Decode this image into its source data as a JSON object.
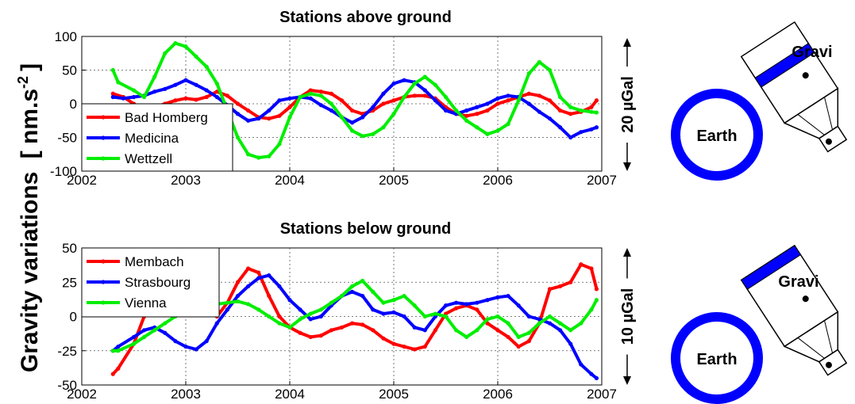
{
  "ylabel_main": "Gravity variations",
  "ylabel_units": "[ nm.s",
  "ylabel_exp": "-2",
  "ylabel_close": "]",
  "chart_data": [
    {
      "type": "line",
      "title": "Stations above ground",
      "xlim": [
        2002,
        2007
      ],
      "ylim": [
        -100,
        100
      ],
      "xticks": [
        "2002",
        "2003",
        "2004",
        "2005",
        "2006",
        "2007"
      ],
      "yticks": [
        "100",
        "50",
        "0",
        "-50",
        "-100"
      ],
      "scale_label": "20 µGal",
      "grid": true,
      "legend_position": "bottom-left",
      "series": [
        {
          "name": "Bad Homberg",
          "color": "#ff0000",
          "x": [
            2002.3,
            2002.4,
            2002.5,
            2002.6,
            2002.7,
            2002.8,
            2002.9,
            2003.0,
            2003.1,
            2003.2,
            2003.3,
            2003.4,
            2003.5,
            2003.6,
            2003.7,
            2003.8,
            2003.9,
            2004.0,
            2004.1,
            2004.2,
            2004.3,
            2004.4,
            2004.5,
            2004.6,
            2004.7,
            2004.8,
            2004.9,
            2005.0,
            2005.1,
            2005.2,
            2005.3,
            2005.4,
            2005.5,
            2005.6,
            2005.7,
            2005.8,
            2005.9,
            2006.0,
            2006.1,
            2006.2,
            2006.3,
            2006.4,
            2006.5,
            2006.6,
            2006.7,
            2006.8,
            2006.9,
            2006.95
          ],
          "y": [
            15,
            10,
            0,
            -10,
            -5,
            0,
            5,
            8,
            6,
            10,
            18,
            12,
            0,
            -10,
            -20,
            -22,
            -18,
            -5,
            10,
            20,
            18,
            15,
            5,
            -10,
            -15,
            -10,
            0,
            5,
            10,
            12,
            12,
            8,
            -5,
            -15,
            -18,
            -15,
            -10,
            0,
            5,
            10,
            15,
            12,
            5,
            -10,
            -15,
            -12,
            -5,
            5
          ]
        },
        {
          "name": "Medicina",
          "color": "#0000ff",
          "x": [
            2002.3,
            2002.4,
            2002.5,
            2002.6,
            2002.7,
            2002.8,
            2002.9,
            2003.0,
            2003.1,
            2003.2,
            2003.3,
            2003.4,
            2003.5,
            2003.6,
            2003.7,
            2003.8,
            2003.9,
            2004.0,
            2004.1,
            2004.2,
            2004.3,
            2004.4,
            2004.5,
            2004.6,
            2004.7,
            2004.8,
            2004.9,
            2005.0,
            2005.1,
            2005.2,
            2005.3,
            2005.4,
            2005.5,
            2005.6,
            2005.7,
            2005.8,
            2005.9,
            2006.0,
            2006.1,
            2006.2,
            2006.3,
            2006.4,
            2006.5,
            2006.6,
            2006.7,
            2006.8,
            2006.9,
            2006.95
          ],
          "y": [
            10,
            8,
            10,
            12,
            18,
            22,
            28,
            35,
            28,
            20,
            10,
            -2,
            -15,
            -25,
            -22,
            -10,
            5,
            8,
            10,
            8,
            -2,
            -10,
            -20,
            -28,
            -20,
            -5,
            15,
            30,
            35,
            32,
            20,
            5,
            -10,
            -15,
            -10,
            -5,
            0,
            8,
            12,
            10,
            0,
            -12,
            -22,
            -35,
            -50,
            -42,
            -38,
            -35
          ]
        },
        {
          "name": "Wettzell",
          "color": "#00ee00",
          "x": [
            2002.3,
            2002.35,
            2002.5,
            2002.6,
            2002.7,
            2002.8,
            2002.9,
            2003.0,
            2003.1,
            2003.2,
            2003.3,
            2003.4,
            2003.5,
            2003.6,
            2003.7,
            2003.8,
            2003.9,
            2004.0,
            2004.1,
            2004.2,
            2004.3,
            2004.4,
            2004.5,
            2004.6,
            2004.7,
            2004.8,
            2004.9,
            2005.0,
            2005.1,
            2005.2,
            2005.3,
            2005.4,
            2005.5,
            2005.6,
            2005.7,
            2005.8,
            2005.9,
            2006.0,
            2006.1,
            2006.2,
            2006.3,
            2006.4,
            2006.5,
            2006.6,
            2006.7,
            2006.8,
            2006.9,
            2006.95
          ],
          "y": [
            50,
            32,
            20,
            10,
            40,
            75,
            90,
            85,
            70,
            55,
            30,
            -10,
            -50,
            -75,
            -80,
            -78,
            -60,
            -20,
            10,
            15,
            12,
            0,
            -20,
            -40,
            -48,
            -45,
            -35,
            -15,
            10,
            30,
            40,
            28,
            10,
            -10,
            -25,
            -35,
            -45,
            -40,
            -30,
            5,
            45,
            62,
            50,
            10,
            -5,
            -10,
            -12,
            -13
          ]
        }
      ]
    },
    {
      "type": "line",
      "title": "Stations below ground",
      "xlim": [
        2002,
        2007
      ],
      "ylim": [
        -50,
        50
      ],
      "xticks": [
        "2002",
        "2003",
        "2004",
        "2005",
        "2006",
        "2007"
      ],
      "yticks": [
        "50",
        "25",
        "0",
        "-25",
        "-50"
      ],
      "scale_label": "10 µGal",
      "grid": true,
      "legend_position": "top-left",
      "series": [
        {
          "name": "Membach",
          "color": "#ff0000",
          "x": [
            2002.3,
            2002.35,
            2002.5,
            2002.6,
            2002.7,
            2002.8,
            2002.9,
            2003.0,
            2003.1,
            2003.2,
            2003.3,
            2003.4,
            2003.5,
            2003.6,
            2003.7,
            2003.8,
            2003.9,
            2004.0,
            2004.1,
            2004.2,
            2004.3,
            2004.4,
            2004.5,
            2004.6,
            2004.7,
            2004.8,
            2004.9,
            2005.0,
            2005.1,
            2005.2,
            2005.3,
            2005.4,
            2005.5,
            2005.6,
            2005.7,
            2005.8,
            2005.9,
            2006.0,
            2006.1,
            2006.2,
            2006.3,
            2006.4,
            2006.5,
            2006.6,
            2006.7,
            2006.8,
            2006.9,
            2006.95
          ],
          "y": [
            -42,
            -38,
            -20,
            0,
            8,
            10,
            12,
            15,
            12,
            5,
            0,
            10,
            25,
            35,
            32,
            15,
            0,
            -8,
            -12,
            -15,
            -14,
            -10,
            -8,
            -5,
            -6,
            -10,
            -16,
            -20,
            -22,
            -24,
            -22,
            -10,
            2,
            6,
            8,
            5,
            -5,
            -10,
            -15,
            -22,
            -18,
            -5,
            20,
            22,
            25,
            38,
            35,
            20
          ]
        },
        {
          "name": "Strasbourg",
          "color": "#0000ff",
          "x": [
            2002.3,
            2002.35,
            2002.5,
            2002.6,
            2002.7,
            2002.8,
            2002.9,
            2003.0,
            2003.1,
            2003.2,
            2003.3,
            2003.4,
            2003.5,
            2003.6,
            2003.7,
            2003.8,
            2003.9,
            2004.0,
            2004.1,
            2004.2,
            2004.3,
            2004.4,
            2004.5,
            2004.6,
            2004.7,
            2004.8,
            2004.9,
            2005.0,
            2005.1,
            2005.2,
            2005.3,
            2005.4,
            2005.5,
            2005.6,
            2005.7,
            2005.8,
            2005.9,
            2006.0,
            2006.1,
            2006.2,
            2006.3,
            2006.4,
            2006.5,
            2006.6,
            2006.7,
            2006.8,
            2006.9,
            2006.95
          ],
          "y": [
            -25,
            -22,
            -15,
            -10,
            -8,
            -12,
            -18,
            -22,
            -24,
            -18,
            -5,
            5,
            15,
            22,
            28,
            30,
            22,
            12,
            5,
            -2,
            0,
            8,
            15,
            18,
            15,
            5,
            2,
            3,
            0,
            -8,
            -10,
            0,
            8,
            10,
            9,
            10,
            12,
            14,
            15,
            8,
            0,
            -2,
            -5,
            -10,
            -20,
            -35,
            -42,
            -45
          ]
        },
        {
          "name": "Vienna",
          "color": "#00ee00",
          "x": [
            2002.3,
            2002.35,
            2002.5,
            2002.6,
            2002.7,
            2002.8,
            2002.9,
            2003.0,
            2003.1,
            2003.2,
            2003.3,
            2003.4,
            2003.5,
            2003.6,
            2003.7,
            2003.8,
            2003.9,
            2004.0,
            2004.1,
            2004.2,
            2004.3,
            2004.4,
            2004.5,
            2004.6,
            2004.7,
            2004.8,
            2004.9,
            2005.0,
            2005.1,
            2005.2,
            2005.3,
            2005.4,
            2005.5,
            2005.6,
            2005.7,
            2005.8,
            2005.9,
            2006.0,
            2006.1,
            2006.2,
            2006.3,
            2006.4,
            2006.5,
            2006.6,
            2006.7,
            2006.8,
            2006.9,
            2006.95
          ],
          "y": [
            -25,
            -25,
            -20,
            -15,
            -10,
            -5,
            0,
            5,
            8,
            8,
            9,
            10,
            11,
            9,
            5,
            0,
            -5,
            -8,
            -2,
            2,
            5,
            10,
            15,
            22,
            26,
            18,
            10,
            12,
            15,
            8,
            0,
            2,
            0,
            -10,
            -15,
            -10,
            -2,
            0,
            -5,
            -15,
            -12,
            -5,
            0,
            -5,
            -10,
            -5,
            5,
            12
          ]
        }
      ]
    }
  ],
  "icons": [
    {
      "earth_label": "Earth",
      "gravi_label": "Gravi",
      "color": "#0000ff",
      "orientation": "above"
    },
    {
      "earth_label": "Earth",
      "gravi_label": "Gravi",
      "color": "#0000ff",
      "orientation": "below"
    }
  ]
}
